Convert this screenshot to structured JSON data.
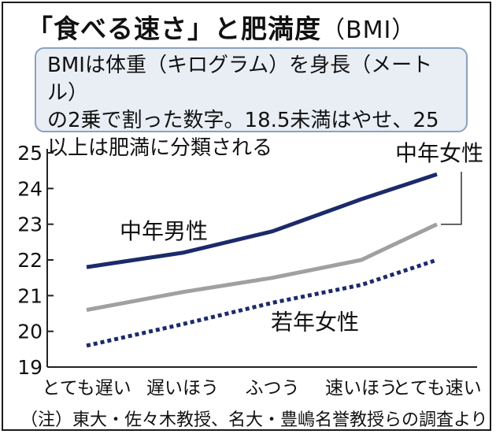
{
  "title": {
    "main": "「食べる速さ」と肥満度",
    "unit": "（BMI）"
  },
  "note": {
    "line1": "BMIは体重（キログラム）を身長（メートル）",
    "line2": "の2乗で割った数字。18.5未満はやせ、25",
    "line3": "以上は肥満に分類される"
  },
  "source": "（注）東大・佐々木教授、名大・豊嶋名誉教授らの調査より",
  "chart_data": {
    "type": "line",
    "categories": [
      "とても遅い",
      "遅いほう",
      "ふつう",
      "速いほう",
      "とても速い"
    ],
    "ylim": [
      19,
      25
    ],
    "yticks": [
      19,
      20,
      21,
      22,
      23,
      24,
      25
    ],
    "grid": false,
    "legend": "inline labels",
    "series": [
      {
        "name": "中年男性",
        "values": [
          21.8,
          22.2,
          22.8,
          23.7,
          24.4
        ],
        "color": "#1c2a6b",
        "style": "solid"
      },
      {
        "name": "中年女性",
        "values": [
          20.6,
          21.1,
          21.5,
          22.0,
          23.0
        ],
        "color": "#a0a0a0",
        "style": "solid"
      },
      {
        "name": "若年女性",
        "values": [
          19.6,
          20.2,
          20.8,
          21.3,
          22.0
        ],
        "color": "#1c2a6b",
        "style": "dotted"
      }
    ]
  }
}
